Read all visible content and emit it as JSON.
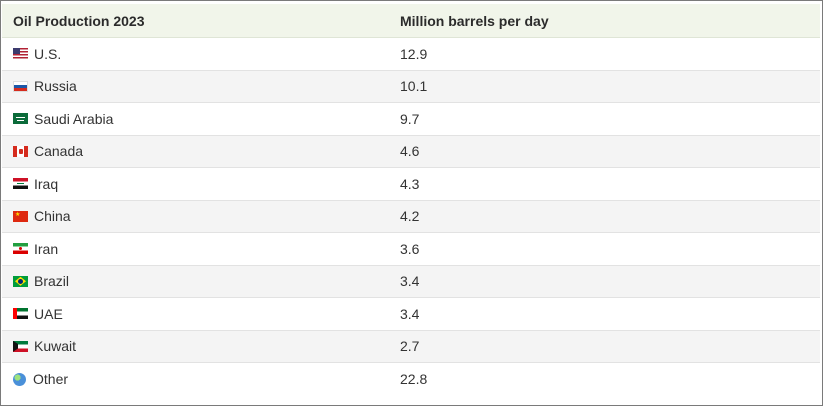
{
  "chart_data": {
    "type": "table",
    "columns": [
      "Oil Production 2023",
      "Million barrels per day"
    ],
    "rows": [
      {
        "country": "U.S.",
        "value": "12.9",
        "flag": "us-flag-icon"
      },
      {
        "country": "Russia",
        "value": "10.1",
        "flag": "russia-flag-icon"
      },
      {
        "country": "Saudi Arabia",
        "value": "9.7",
        "flag": "saudi-arabia-flag-icon"
      },
      {
        "country": "Canada",
        "value": "4.6",
        "flag": "canada-flag-icon"
      },
      {
        "country": "Iraq",
        "value": "4.3",
        "flag": "iraq-flag-icon"
      },
      {
        "country": "China",
        "value": "4.2",
        "flag": "china-flag-icon"
      },
      {
        "country": "Iran",
        "value": "3.6",
        "flag": "iran-flag-icon"
      },
      {
        "country": "Brazil",
        "value": "3.4",
        "flag": "brazil-flag-icon"
      },
      {
        "country": "UAE",
        "value": "3.4",
        "flag": "uae-flag-icon"
      },
      {
        "country": "Kuwait",
        "value": "2.7",
        "flag": "kuwait-flag-icon"
      },
      {
        "country": "Other",
        "value": "22.8",
        "flag": "globe-icon"
      }
    ]
  },
  "colors": {
    "header_bg": "#f1f5ea",
    "row_alt_bg": "#f4f4f4",
    "text": "#333333"
  }
}
